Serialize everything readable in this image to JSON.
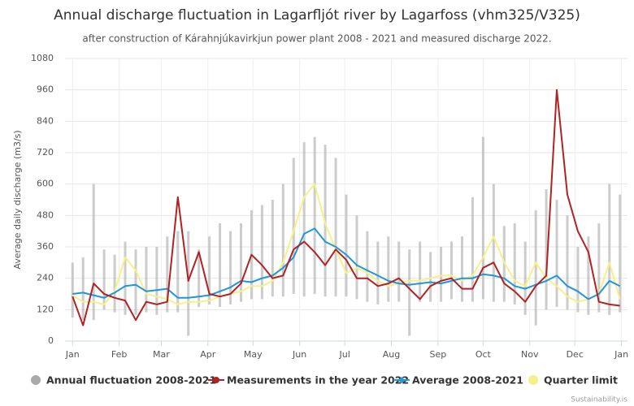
{
  "chart_data": {
    "type": "line",
    "title": "Annual discharge fluctuation in Lagarfljót river by Lagarfoss (vhm325/V325)",
    "subtitle": "after construction of Kárahnjúkavirkjun power plant 2008 - 2021 and measured discharge 2022.",
    "y_label": "Average daily discharge (m3/s)",
    "credits": "Sustainability.is",
    "xlim": [
      -4,
      370
    ],
    "xticks": [
      {
        "value": 1,
        "label": "Jan"
      },
      {
        "value": 32,
        "label": "Feb"
      },
      {
        "value": 60,
        "label": "Mar"
      },
      {
        "value": 91,
        "label": "Apr"
      },
      {
        "value": 121,
        "label": "May"
      },
      {
        "value": 152,
        "label": "Jun"
      },
      {
        "value": 182,
        "label": "Jul"
      },
      {
        "value": 213,
        "label": "Aug"
      },
      {
        "value": 244,
        "label": "Sep"
      },
      {
        "value": 274,
        "label": "Oct"
      },
      {
        "value": 305,
        "label": "Nov"
      },
      {
        "value": 335,
        "label": "Dec"
      },
      {
        "value": 366,
        "label": "Jan"
      }
    ],
    "ylim": [
      0,
      1080
    ],
    "yticks": [
      0,
      120,
      240,
      360,
      480,
      600,
      720,
      840,
      960,
      1080
    ],
    "grid": true,
    "legend": "bottom",
    "x": [
      1,
      8,
      15,
      22,
      29,
      36,
      43,
      50,
      57,
      64,
      71,
      78,
      85,
      92,
      99,
      106,
      113,
      120,
      127,
      134,
      141,
      148,
      155,
      162,
      169,
      176,
      183,
      190,
      197,
      204,
      211,
      218,
      225,
      232,
      239,
      246,
      253,
      260,
      267,
      274,
      281,
      288,
      295,
      302,
      309,
      316,
      323,
      330,
      337,
      344,
      351,
      358,
      365
    ],
    "series": [
      {
        "name": "Annual fluctuation 2008-2021",
        "type": "range",
        "color": "#aaaaaa",
        "low": [
          90,
          80,
          80,
          120,
          110,
          100,
          100,
          110,
          100,
          110,
          110,
          20,
          130,
          140,
          130,
          140,
          150,
          160,
          160,
          170,
          170,
          180,
          170,
          180,
          170,
          170,
          170,
          160,
          150,
          140,
          150,
          150,
          20,
          150,
          150,
          150,
          160,
          150,
          150,
          160,
          150,
          150,
          140,
          100,
          60,
          120,
          130,
          120,
          110,
          100,
          110,
          100,
          110
        ],
        "high": [
          300,
          320,
          600,
          350,
          330,
          380,
          350,
          360,
          360,
          400,
          420,
          420,
          350,
          400,
          450,
          420,
          450,
          500,
          520,
          540,
          600,
          700,
          760,
          780,
          750,
          700,
          560,
          480,
          420,
          380,
          400,
          380,
          350,
          380,
          340,
          360,
          380,
          400,
          550,
          780,
          600,
          440,
          450,
          380,
          500,
          580,
          540,
          480,
          360,
          400,
          450,
          600,
          560
        ]
      },
      {
        "name": "Measurements in the year 2022",
        "color": "#b22222",
        "values": [
          170,
          60,
          220,
          180,
          165,
          155,
          80,
          150,
          140,
          150,
          550,
          230,
          340,
          180,
          170,
          180,
          220,
          330,
          290,
          240,
          250,
          350,
          380,
          340,
          290,
          350,
          310,
          240,
          240,
          210,
          220,
          240,
          200,
          160,
          210,
          230,
          240,
          200,
          200,
          280,
          300,
          220,
          190,
          150,
          210,
          250,
          960,
          560,
          420,
          340,
          150,
          140,
          135
        ]
      },
      {
        "name": "Average 2008-2021",
        "color": "#2196d8",
        "values": [
          180,
          185,
          175,
          165,
          185,
          210,
          215,
          190,
          195,
          200,
          165,
          165,
          170,
          175,
          190,
          205,
          230,
          225,
          240,
          250,
          280,
          320,
          410,
          430,
          380,
          360,
          330,
          290,
          270,
          250,
          230,
          220,
          215,
          220,
          225,
          220,
          230,
          240,
          240,
          255,
          250,
          240,
          210,
          200,
          215,
          230,
          250,
          210,
          190,
          160,
          180,
          230,
          210
        ]
      },
      {
        "name": "Quarter limit",
        "color": "#f7f08a",
        "values": [
          175,
          150,
          150,
          140,
          190,
          320,
          270,
          180,
          170,
          160,
          140,
          150,
          150,
          155,
          170,
          180,
          190,
          210,
          210,
          230,
          300,
          420,
          550,
          600,
          450,
          350,
          260,
          280,
          260,
          230,
          210,
          220,
          230,
          230,
          240,
          250,
          250,
          230,
          250,
          320,
          400,
          300,
          230,
          210,
          300,
          240,
          210,
          170,
          150,
          160,
          180,
          300,
          160
        ]
      }
    ]
  }
}
